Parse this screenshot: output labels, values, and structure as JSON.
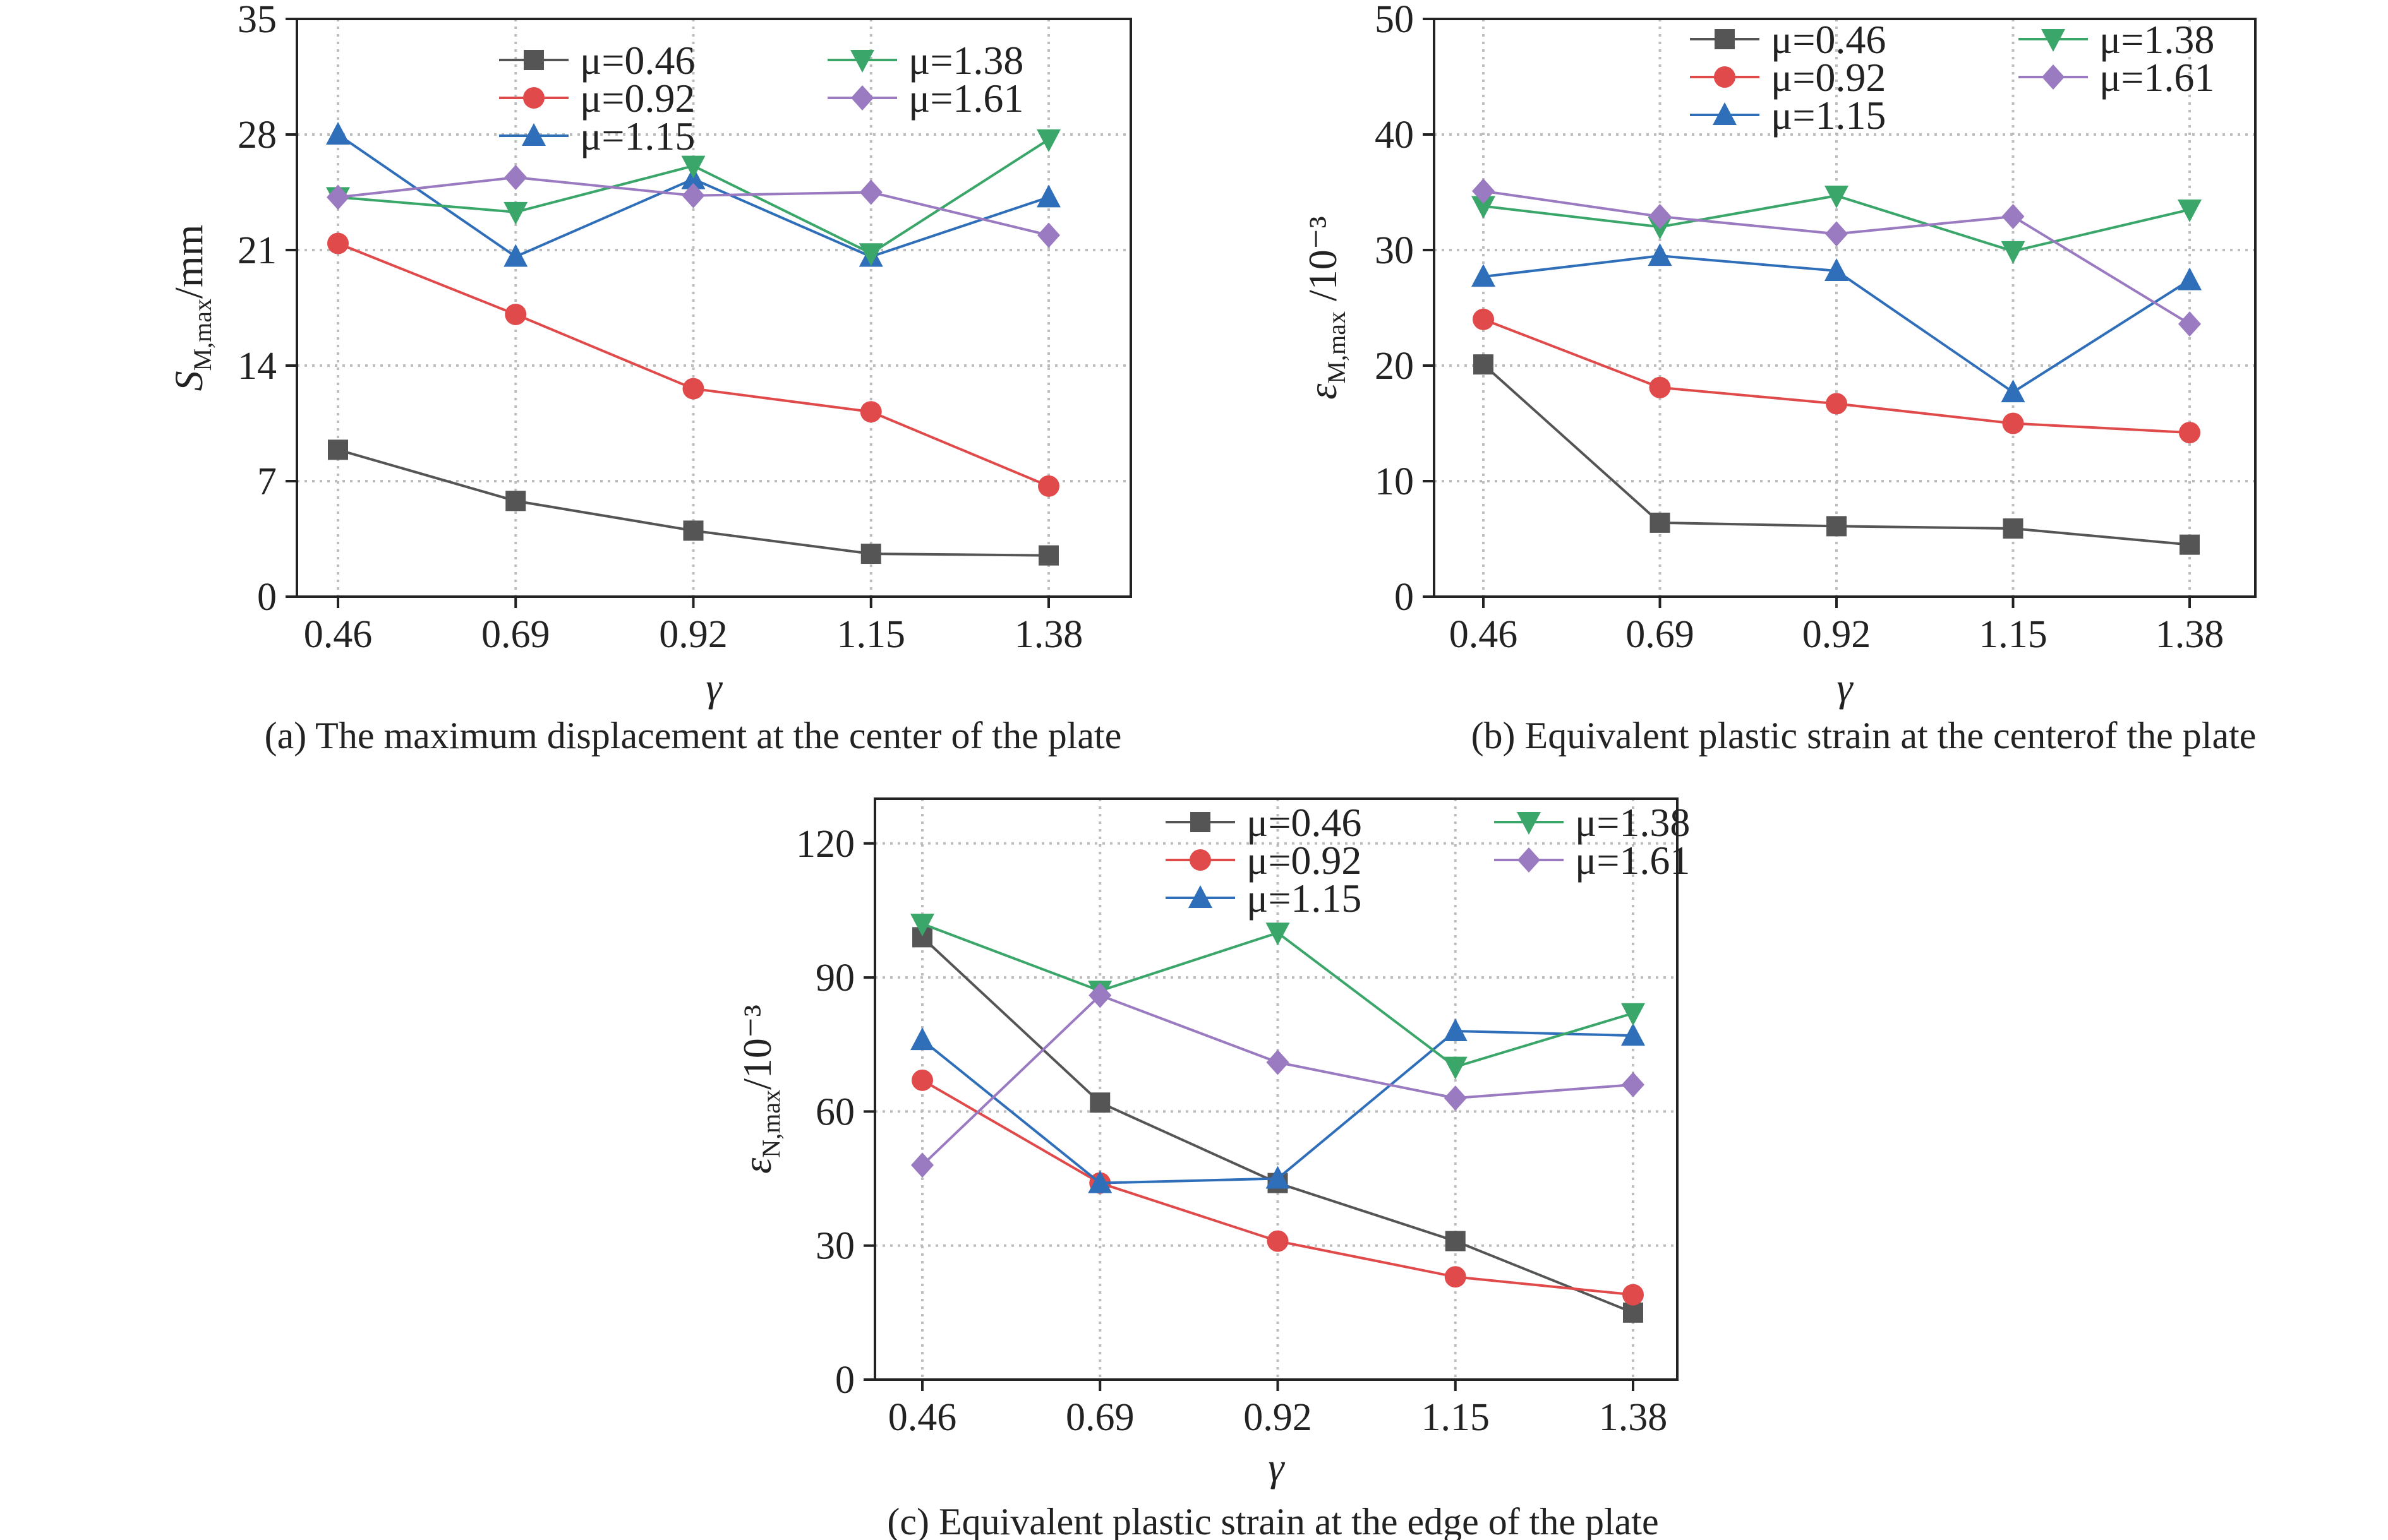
{
  "figure": {
    "series_styles": [
      {
        "color": "#555555",
        "marker": "square"
      },
      {
        "color": "#e04a4a",
        "marker": "circle"
      },
      {
        "color": "#2f6fba",
        "marker": "triangle-up"
      },
      {
        "color": "#3aa66a",
        "marker": "triangle-down"
      },
      {
        "color": "#9a7ac0",
        "marker": "diamond"
      }
    ]
  },
  "chart_data": [
    {
      "type": "line",
      "caption": "(a) The maximum displacement at the center of the plate",
      "xlabel": "γ",
      "ylabel": {
        "main": "S",
        "sub": "M,max",
        "unit": "/mm"
      },
      "x": [
        "0.46",
        "0.69",
        "0.92",
        "1.15",
        "1.38"
      ],
      "ylim": [
        0,
        35
      ],
      "yticks": [
        "0",
        "7",
        "14",
        "21",
        "28",
        "35"
      ],
      "grid": true,
      "legend_position": "top-right",
      "series": [
        {
          "name": "μ=0.46",
          "values": [
            8.9,
            5.8,
            4.0,
            2.6,
            2.5
          ]
        },
        {
          "name": "μ=0.92",
          "values": [
            21.4,
            17.1,
            12.6,
            11.2,
            6.7
          ]
        },
        {
          "name": "μ=1.15",
          "values": [
            28.0,
            20.6,
            25.3,
            20.6,
            24.2
          ]
        },
        {
          "name": "μ=1.38",
          "values": [
            24.2,
            23.3,
            26.1,
            20.8,
            27.7
          ]
        },
        {
          "name": "μ=1.61",
          "values": [
            24.2,
            25.4,
            24.3,
            24.5,
            21.9
          ]
        }
      ]
    },
    {
      "type": "line",
      "caption": "(b) Equivalent plastic strain at the centerof the plate",
      "xlabel": "γ",
      "ylabel": {
        "main": "ε",
        "sub": "M,max",
        "unit": " /10⁻³"
      },
      "x": [
        "0.46",
        "0.69",
        "0.92",
        "1.15",
        "1.38"
      ],
      "ylim": [
        0,
        50
      ],
      "yticks": [
        "0",
        "10",
        "20",
        "30",
        "40",
        "50"
      ],
      "grid": true,
      "legend_position": "top-right",
      "series": [
        {
          "name": "μ=0.46",
          "values": [
            20.1,
            6.4,
            6.1,
            5.9,
            4.5
          ]
        },
        {
          "name": "μ=0.92",
          "values": [
            24.0,
            18.1,
            16.7,
            15.0,
            14.2
          ]
        },
        {
          "name": "μ=1.15",
          "values": [
            27.7,
            29.5,
            28.2,
            17.7,
            27.4
          ]
        },
        {
          "name": "μ=1.38",
          "values": [
            33.8,
            32.0,
            34.7,
            29.9,
            33.5
          ]
        },
        {
          "name": "μ=1.61",
          "values": [
            35.1,
            32.9,
            31.4,
            32.9,
            23.6
          ]
        }
      ]
    },
    {
      "type": "line",
      "caption": "(c) Equivalent plastic strain at the edge of the plate",
      "xlabel": "γ",
      "ylabel": {
        "main": "ε",
        "sub": "N,max",
        "unit": "/10⁻³"
      },
      "x": [
        "0.46",
        "0.69",
        "0.92",
        "1.15",
        "1.38"
      ],
      "ylim": [
        0,
        130
      ],
      "yticks": [
        "0",
        "30",
        "60",
        "90",
        "120"
      ],
      "grid": true,
      "legend_position": "top-right",
      "series": [
        {
          "name": "μ=0.46",
          "values": [
            99,
            62,
            44,
            31,
            15
          ]
        },
        {
          "name": "μ=0.92",
          "values": [
            67,
            44,
            31,
            23,
            19
          ]
        },
        {
          "name": "μ=1.15",
          "values": [
            76,
            44,
            45,
            78,
            77
          ]
        },
        {
          "name": "μ=1.38",
          "values": [
            102,
            87,
            100,
            70,
            82
          ]
        },
        {
          "name": "μ=1.61",
          "values": [
            48,
            86,
            71,
            63,
            66
          ]
        }
      ]
    }
  ]
}
